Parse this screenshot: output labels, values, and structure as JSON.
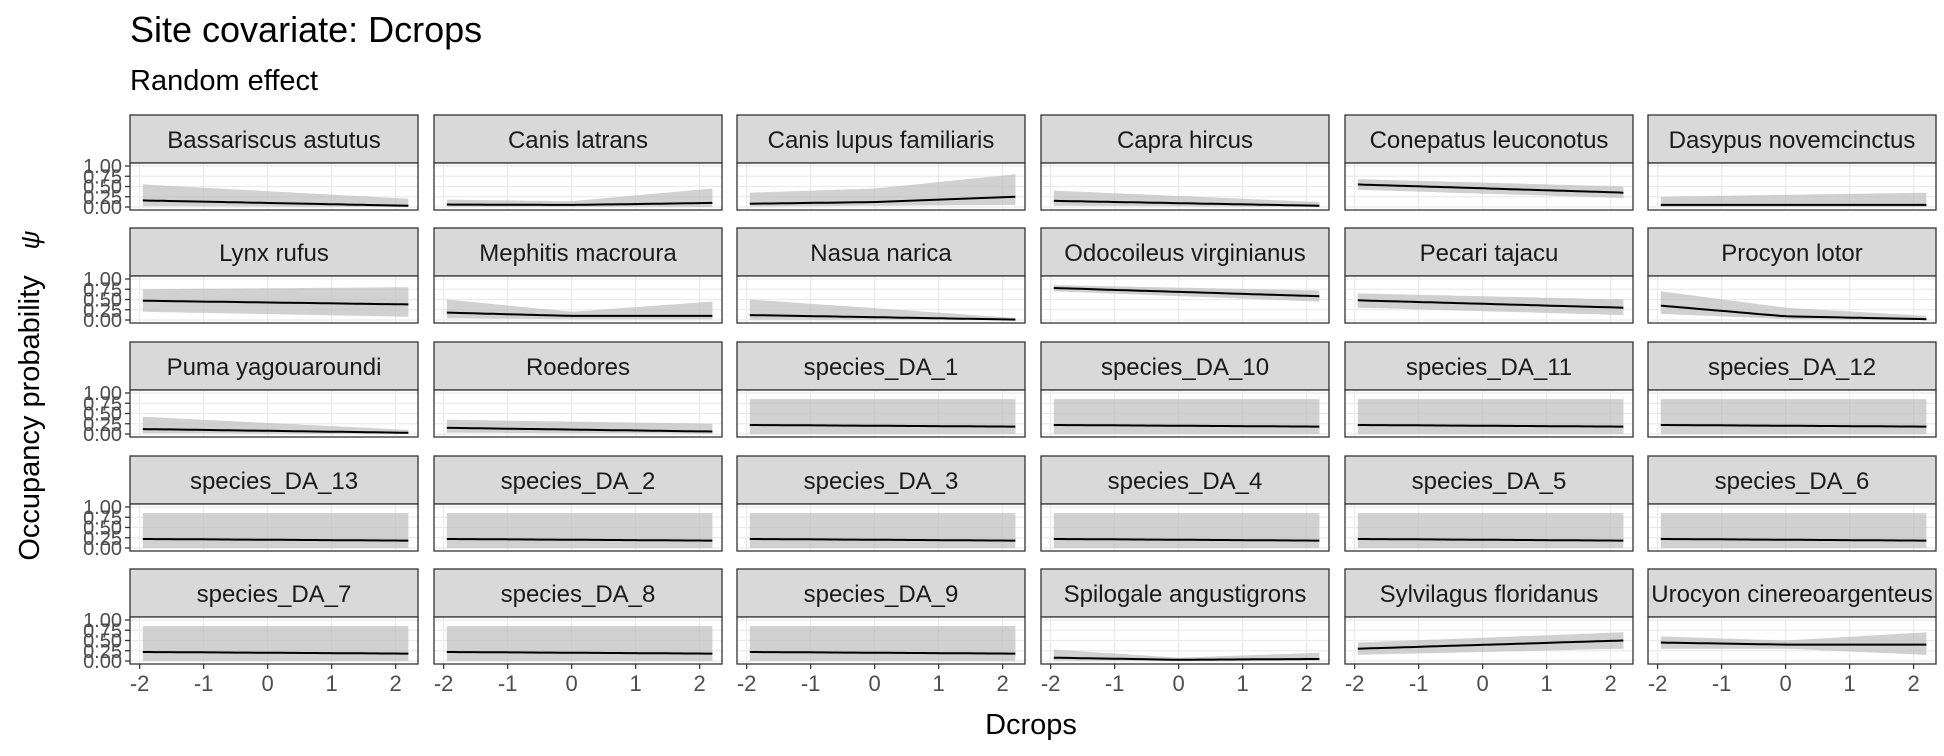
{
  "chart_data": {
    "type": "line",
    "title": "Site covariate: Dcrops",
    "subtitle": "Random effect",
    "xlabel": "Dcrops",
    "ylabel": "Occupancy probability",
    "ylabel_symbol": "ψ",
    "xlim": [
      -2.15,
      2.35
    ],
    "ylim": [
      0,
      1
    ],
    "x_ticks": [
      -2,
      -1,
      0,
      1,
      2
    ],
    "x_tick_labels": [
      "-2",
      "-1",
      "0",
      "1",
      "2"
    ],
    "y_ticks": [
      0,
      0.25,
      0.5,
      0.75,
      1
    ],
    "y_tick_labels": [
      "0.00",
      "0.25",
      "0.50",
      "0.75",
      "1.00"
    ],
    "grid": true,
    "facet_rows": 5,
    "facet_cols": 6,
    "x_range": [
      -1.95,
      2.2
    ],
    "panels": [
      {
        "name": "Bassariscus astutus",
        "x": [
          -1.95,
          2.2
        ],
        "mean": [
          0.16,
          0.03
        ],
        "lower": [
          0.02,
          0.0
        ],
        "upper": [
          0.55,
          0.2
        ]
      },
      {
        "name": "Canis latrans",
        "x": [
          -1.95,
          0,
          2.2
        ],
        "mean": [
          0.06,
          0.05,
          0.1
        ],
        "lower": [
          0.01,
          0.01,
          0.0
        ],
        "upper": [
          0.18,
          0.14,
          0.45
        ]
      },
      {
        "name": "Canis lupus familiaris",
        "x": [
          -1.95,
          0,
          2.2
        ],
        "mean": [
          0.08,
          0.12,
          0.25
        ],
        "lower": [
          0.01,
          0.03,
          0.05
        ],
        "upper": [
          0.35,
          0.45,
          0.8
        ]
      },
      {
        "name": "Capra hircus",
        "x": [
          -1.95,
          2.2
        ],
        "mean": [
          0.15,
          0.03
        ],
        "lower": [
          0.03,
          0.0
        ],
        "upper": [
          0.4,
          0.12
        ]
      },
      {
        "name": "Conepatus leuconotus",
        "x": [
          -1.95,
          2.2
        ],
        "mean": [
          0.55,
          0.35
        ],
        "lower": [
          0.42,
          0.22
        ],
        "upper": [
          0.68,
          0.5
        ]
      },
      {
        "name": "Dasypus novemcinctus",
        "x": [
          -1.95,
          2.2
        ],
        "mean": [
          0.05,
          0.05
        ],
        "lower": [
          0.0,
          0.0
        ],
        "upper": [
          0.25,
          0.35
        ]
      },
      {
        "name": "Lynx rufus",
        "x": [
          -1.95,
          2.2
        ],
        "mean": [
          0.47,
          0.38
        ],
        "lower": [
          0.2,
          0.08
        ],
        "upper": [
          0.75,
          0.8
        ]
      },
      {
        "name": "Mephitis macroura",
        "x": [
          -1.95,
          0,
          2.2
        ],
        "mean": [
          0.18,
          0.1,
          0.1
        ],
        "lower": [
          0.04,
          0.02,
          0.02
        ],
        "upper": [
          0.5,
          0.2,
          0.45
        ]
      },
      {
        "name": "Nasua narica",
        "x": [
          -1.95,
          2.2
        ],
        "mean": [
          0.12,
          0.01
        ],
        "lower": [
          0.01,
          0.0
        ],
        "upper": [
          0.5,
          0.05
        ]
      },
      {
        "name": "Odocoileus virginianus",
        "x": [
          -1.95,
          2.2
        ],
        "mean": [
          0.78,
          0.58
        ],
        "lower": [
          0.7,
          0.45
        ],
        "upper": [
          0.85,
          0.72
        ]
      },
      {
        "name": "Pecari tajacu",
        "x": [
          -1.95,
          2.2
        ],
        "mean": [
          0.48,
          0.3
        ],
        "lower": [
          0.3,
          0.12
        ],
        "upper": [
          0.65,
          0.5
        ]
      },
      {
        "name": "Procyon lotor",
        "x": [
          -1.95,
          0,
          2.2
        ],
        "mean": [
          0.35,
          0.09,
          0.02
        ],
        "lower": [
          0.15,
          0.02,
          0.0
        ],
        "upper": [
          0.7,
          0.3,
          0.1
        ]
      },
      {
        "name": "Puma yagouaroundi",
        "x": [
          -1.95,
          2.2
        ],
        "mean": [
          0.12,
          0.03
        ],
        "lower": [
          0.02,
          0.0
        ],
        "upper": [
          0.42,
          0.1
        ]
      },
      {
        "name": "Roedores",
        "x": [
          -1.95,
          2.2
        ],
        "mean": [
          0.15,
          0.06
        ],
        "lower": [
          0.03,
          0.01
        ],
        "upper": [
          0.35,
          0.25
        ]
      },
      {
        "name": "species_DA_1",
        "x": [
          -1.95,
          2.2
        ],
        "mean": [
          0.22,
          0.18
        ],
        "lower": [
          0.0,
          0.0
        ],
        "upper": [
          0.85,
          0.85
        ]
      },
      {
        "name": "species_DA_10",
        "x": [
          -1.95,
          2.2
        ],
        "mean": [
          0.22,
          0.18
        ],
        "lower": [
          0.0,
          0.0
        ],
        "upper": [
          0.85,
          0.85
        ]
      },
      {
        "name": "species_DA_11",
        "x": [
          -1.95,
          2.2
        ],
        "mean": [
          0.22,
          0.18
        ],
        "lower": [
          0.0,
          0.0
        ],
        "upper": [
          0.85,
          0.85
        ]
      },
      {
        "name": "species_DA_12",
        "x": [
          -1.95,
          2.2
        ],
        "mean": [
          0.22,
          0.18
        ],
        "lower": [
          0.0,
          0.0
        ],
        "upper": [
          0.85,
          0.85
        ]
      },
      {
        "name": "species_DA_13",
        "x": [
          -1.95,
          2.2
        ],
        "mean": [
          0.22,
          0.18
        ],
        "lower": [
          0.0,
          0.0
        ],
        "upper": [
          0.85,
          0.85
        ]
      },
      {
        "name": "species_DA_2",
        "x": [
          -1.95,
          2.2
        ],
        "mean": [
          0.22,
          0.18
        ],
        "lower": [
          0.0,
          0.0
        ],
        "upper": [
          0.85,
          0.85
        ]
      },
      {
        "name": "species_DA_3",
        "x": [
          -1.95,
          2.2
        ],
        "mean": [
          0.22,
          0.18
        ],
        "lower": [
          0.0,
          0.0
        ],
        "upper": [
          0.85,
          0.85
        ]
      },
      {
        "name": "species_DA_4",
        "x": [
          -1.95,
          2.2
        ],
        "mean": [
          0.22,
          0.18
        ],
        "lower": [
          0.0,
          0.0
        ],
        "upper": [
          0.85,
          0.85
        ]
      },
      {
        "name": "species_DA_5",
        "x": [
          -1.95,
          2.2
        ],
        "mean": [
          0.22,
          0.18
        ],
        "lower": [
          0.0,
          0.0
        ],
        "upper": [
          0.85,
          0.85
        ]
      },
      {
        "name": "species_DA_6",
        "x": [
          -1.95,
          2.2
        ],
        "mean": [
          0.22,
          0.18
        ],
        "lower": [
          0.0,
          0.0
        ],
        "upper": [
          0.85,
          0.85
        ]
      },
      {
        "name": "species_DA_7",
        "x": [
          -1.95,
          2.2
        ],
        "mean": [
          0.22,
          0.18
        ],
        "lower": [
          0.0,
          0.0
        ],
        "upper": [
          0.85,
          0.85
        ]
      },
      {
        "name": "species_DA_8",
        "x": [
          -1.95,
          2.2
        ],
        "mean": [
          0.22,
          0.18
        ],
        "lower": [
          0.0,
          0.0
        ],
        "upper": [
          0.85,
          0.85
        ]
      },
      {
        "name": "species_DA_9",
        "x": [
          -1.95,
          2.2
        ],
        "mean": [
          0.22,
          0.18
        ],
        "lower": [
          0.0,
          0.0
        ],
        "upper": [
          0.85,
          0.85
        ]
      },
      {
        "name": "Spilogale angustigrons",
        "x": [
          -1.95,
          0,
          2.2
        ],
        "mean": [
          0.08,
          0.03,
          0.05
        ],
        "lower": [
          0.01,
          0.0,
          0.0
        ],
        "upper": [
          0.28,
          0.08,
          0.2
        ]
      },
      {
        "name": "Sylvilagus floridanus",
        "x": [
          -1.95,
          2.2
        ],
        "mean": [
          0.3,
          0.5
        ],
        "lower": [
          0.15,
          0.3
        ],
        "upper": [
          0.45,
          0.7
        ]
      },
      {
        "name": "Urocyon cinereoargenteus",
        "x": [
          -1.95,
          0,
          2.2
        ],
        "mean": [
          0.45,
          0.4,
          0.4
        ],
        "lower": [
          0.3,
          0.3,
          0.15
        ],
        "upper": [
          0.6,
          0.5,
          0.7
        ]
      }
    ]
  },
  "style": {
    "strip_fill": "#d9d9d9",
    "band_fill": "#bebebe",
    "line_color": "#000000",
    "grid_major": "#ebebeb",
    "panel_border": "#333333",
    "text_color": "#000000",
    "tick_text_color": "#4d4d4d"
  }
}
